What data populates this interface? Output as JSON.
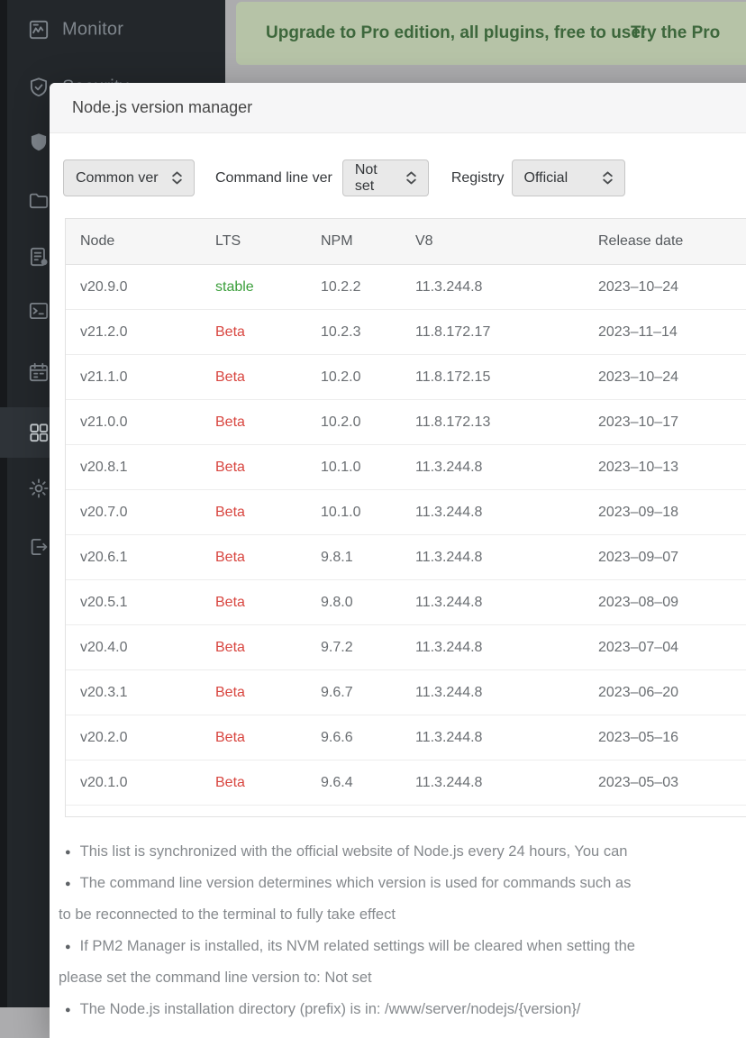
{
  "banner": {
    "message": "Upgrade to Pro edition, all plugins, free to use!",
    "action_label": "Try the Pro"
  },
  "sidebar": {
    "items": [
      {
        "name": "monitor",
        "label": "Monitor",
        "icon": "monitor-icon",
        "active": false
      },
      {
        "name": "security",
        "label": "Security",
        "icon": "shield-check-icon",
        "active": false
      },
      {
        "name": "waf",
        "label": "",
        "icon": "shield-solid-icon",
        "active": false
      },
      {
        "name": "files",
        "label": "",
        "icon": "folder-icon",
        "active": false
      },
      {
        "name": "logs",
        "label": "",
        "icon": "logs-icon",
        "active": false
      },
      {
        "name": "terminal",
        "label": "",
        "icon": "terminal-icon",
        "active": false
      },
      {
        "name": "cron",
        "label": "",
        "icon": "calendar-icon",
        "active": false
      },
      {
        "name": "app-store",
        "label": "",
        "icon": "app-grid-icon",
        "active": true
      },
      {
        "name": "settings",
        "label": "",
        "icon": "gear-icon",
        "active": false
      },
      {
        "name": "logout",
        "label": "",
        "icon": "logout-icon",
        "active": false
      }
    ]
  },
  "modal": {
    "title": "Node.js version manager",
    "filters": {
      "common_version_value": "Common ver",
      "cli_label": "Command line ver",
      "cli_value": "Not set",
      "registry_label": "Registry",
      "registry_value": "Official"
    },
    "table": {
      "columns": [
        "Node",
        "LTS",
        "NPM",
        "V8",
        "Release date"
      ],
      "rows": [
        {
          "node": "v20.9.0",
          "lts": "stable",
          "npm": "10.2.2",
          "v8": "11.3.244.8",
          "release_date": "2023–10–24"
        },
        {
          "node": "v21.2.0",
          "lts": "Beta",
          "npm": "10.2.3",
          "v8": "11.8.172.17",
          "release_date": "2023–11–14"
        },
        {
          "node": "v21.1.0",
          "lts": "Beta",
          "npm": "10.2.0",
          "v8": "11.8.172.15",
          "release_date": "2023–10–24"
        },
        {
          "node": "v21.0.0",
          "lts": "Beta",
          "npm": "10.2.0",
          "v8": "11.8.172.13",
          "release_date": "2023–10–17"
        },
        {
          "node": "v20.8.1",
          "lts": "Beta",
          "npm": "10.1.0",
          "v8": "11.3.244.8",
          "release_date": "2023–10–13"
        },
        {
          "node": "v20.7.0",
          "lts": "Beta",
          "npm": "10.1.0",
          "v8": "11.3.244.8",
          "release_date": "2023–09–18"
        },
        {
          "node": "v20.6.1",
          "lts": "Beta",
          "npm": "9.8.1",
          "v8": "11.3.244.8",
          "release_date": "2023–09–07"
        },
        {
          "node": "v20.5.1",
          "lts": "Beta",
          "npm": "9.8.0",
          "v8": "11.3.244.8",
          "release_date": "2023–08–09"
        },
        {
          "node": "v20.4.0",
          "lts": "Beta",
          "npm": "9.7.2",
          "v8": "11.3.244.8",
          "release_date": "2023–07–04"
        },
        {
          "node": "v20.3.1",
          "lts": "Beta",
          "npm": "9.6.7",
          "v8": "11.3.244.8",
          "release_date": "2023–06–20"
        },
        {
          "node": "v20.2.0",
          "lts": "Beta",
          "npm": "9.6.6",
          "v8": "11.3.244.8",
          "release_date": "2023–05–16"
        },
        {
          "node": "v20.1.0",
          "lts": "Beta",
          "npm": "9.6.4",
          "v8": "11.3.244.8",
          "release_date": "2023–05–03"
        }
      ]
    },
    "notes": [
      {
        "bullet": true,
        "text": "This list is synchronized with the official website of Node.js every 24 hours, You can"
      },
      {
        "bullet": true,
        "text": "The command line version determines which version is used for commands such as"
      },
      {
        "bullet": false,
        "text": "to be reconnected to the terminal to fully take effect"
      },
      {
        "bullet": true,
        "text": "If PM2 Manager is installed, its NVM related settings will be cleared when setting the"
      },
      {
        "bullet": false,
        "text": "please set the command line version to: Not set"
      },
      {
        "bullet": true,
        "text": "The Node.js installation directory (prefix) is in: /www/server/nodejs/{version}/"
      }
    ]
  },
  "colors": {
    "lts_stable": "#3a9e3a",
    "lts_beta": "#d8453f",
    "banner_bg": "#b6c3a7",
    "banner_text": "#3d673c",
    "sidebar_bg": "#23272b",
    "backdrop": "#acacae"
  }
}
